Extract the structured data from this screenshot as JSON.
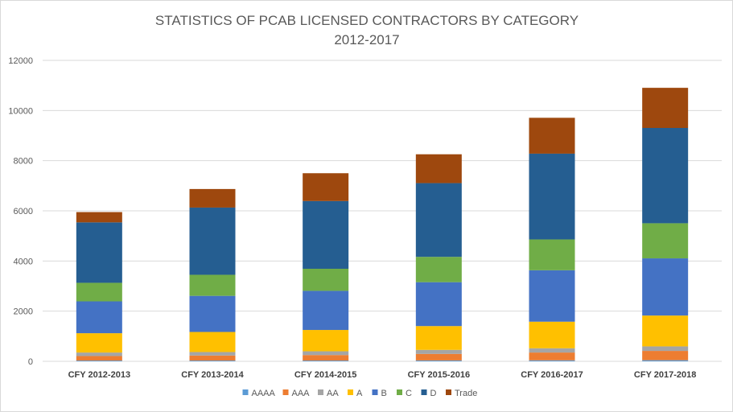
{
  "chart_data": {
    "type": "bar",
    "stacked": true,
    "title": [
      "STATISTICS OF PCAB LICENSED CONTRACTORS BY CATEGORY",
      "2012-2017"
    ],
    "xlabel": "",
    "ylabel": "",
    "ylim": [
      0,
      12000
    ],
    "yticks": [
      0,
      2000,
      4000,
      6000,
      8000,
      10000,
      12000
    ],
    "grid": true,
    "legend_position": "bottom",
    "categories": [
      "CFY 2012-2013",
      "CFY 2013-2014",
      "CFY 2014-2015",
      "CFY 2015-2016",
      "CFY 2016-2017",
      "CFY 2017-2018"
    ],
    "series": [
      {
        "name": "AAAA",
        "color": "#5b9bd5",
        "values": [
          30,
          30,
          30,
          35,
          40,
          45
        ]
      },
      {
        "name": "AAA",
        "color": "#ed7d31",
        "values": [
          180,
          200,
          220,
          260,
          310,
          370
        ]
      },
      {
        "name": "AA",
        "color": "#a5a5a5",
        "values": [
          140,
          140,
          150,
          160,
          170,
          180
        ]
      },
      {
        "name": "A",
        "color": "#ffc000",
        "values": [
          770,
          800,
          850,
          950,
          1060,
          1230
        ]
      },
      {
        "name": "B",
        "color": "#4472c4",
        "values": [
          1270,
          1440,
          1560,
          1750,
          2050,
          2280
        ]
      },
      {
        "name": "C",
        "color": "#70ad47",
        "values": [
          740,
          840,
          880,
          1010,
          1230,
          1400
        ]
      },
      {
        "name": "D",
        "color": "#255e91",
        "values": [
          2410,
          2680,
          2700,
          2940,
          3420,
          3800
        ]
      },
      {
        "name": "Trade",
        "color": "#9e480e",
        "values": [
          410,
          740,
          1110,
          1150,
          1430,
          1600
        ]
      }
    ]
  }
}
